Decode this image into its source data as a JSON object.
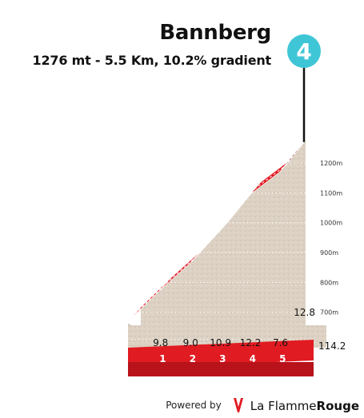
{
  "chart_data": {
    "type": "area",
    "title": "Bannberg",
    "subtitle": "1276 mt - 5.5 Km, 10.2% gradient",
    "climb_number": "4",
    "elevation_axis": {
      "unit": "m",
      "ticks": [
        700,
        800,
        900,
        1000,
        1100,
        1200
      ],
      "tick_labels": [
        "700m",
        "800m",
        "900m",
        "1000m",
        "1100m",
        "1200m"
      ],
      "ylim": [
        640,
        1276
      ]
    },
    "distance_ticks": [
      "1",
      "2",
      "3",
      "4",
      "5"
    ],
    "xlim": [
      0,
      5.5
    ],
    "segments": [
      {
        "km_start": 0,
        "km_end": 1,
        "gradient": 9.8,
        "label": "9.8",
        "color": "#e11b22"
      },
      {
        "km_start": 1,
        "km_end": 2,
        "gradient": 9.0,
        "label": "9.0",
        "color": "#e11b22"
      },
      {
        "km_start": 2,
        "km_end": 3,
        "gradient": 10.9,
        "label": "10.9",
        "color": "#b30c10"
      },
      {
        "km_start": 3,
        "km_end": 4,
        "gradient": 12.2,
        "label": "12.2",
        "color": "#8e0000"
      },
      {
        "km_start": 4,
        "km_end": 5,
        "gradient": 7.6,
        "label": "7.6",
        "color": "#e11b22"
      },
      {
        "km_start": 5,
        "km_end": 5.5,
        "gradient": 12.8,
        "label": "12.8",
        "color": "#8e0000"
      }
    ],
    "finish_km_label": "114.2",
    "grid": true
  },
  "footer": {
    "powered_by": "Powered by",
    "brand_part1": "La Flamme",
    "brand_part2": "Rouge"
  }
}
